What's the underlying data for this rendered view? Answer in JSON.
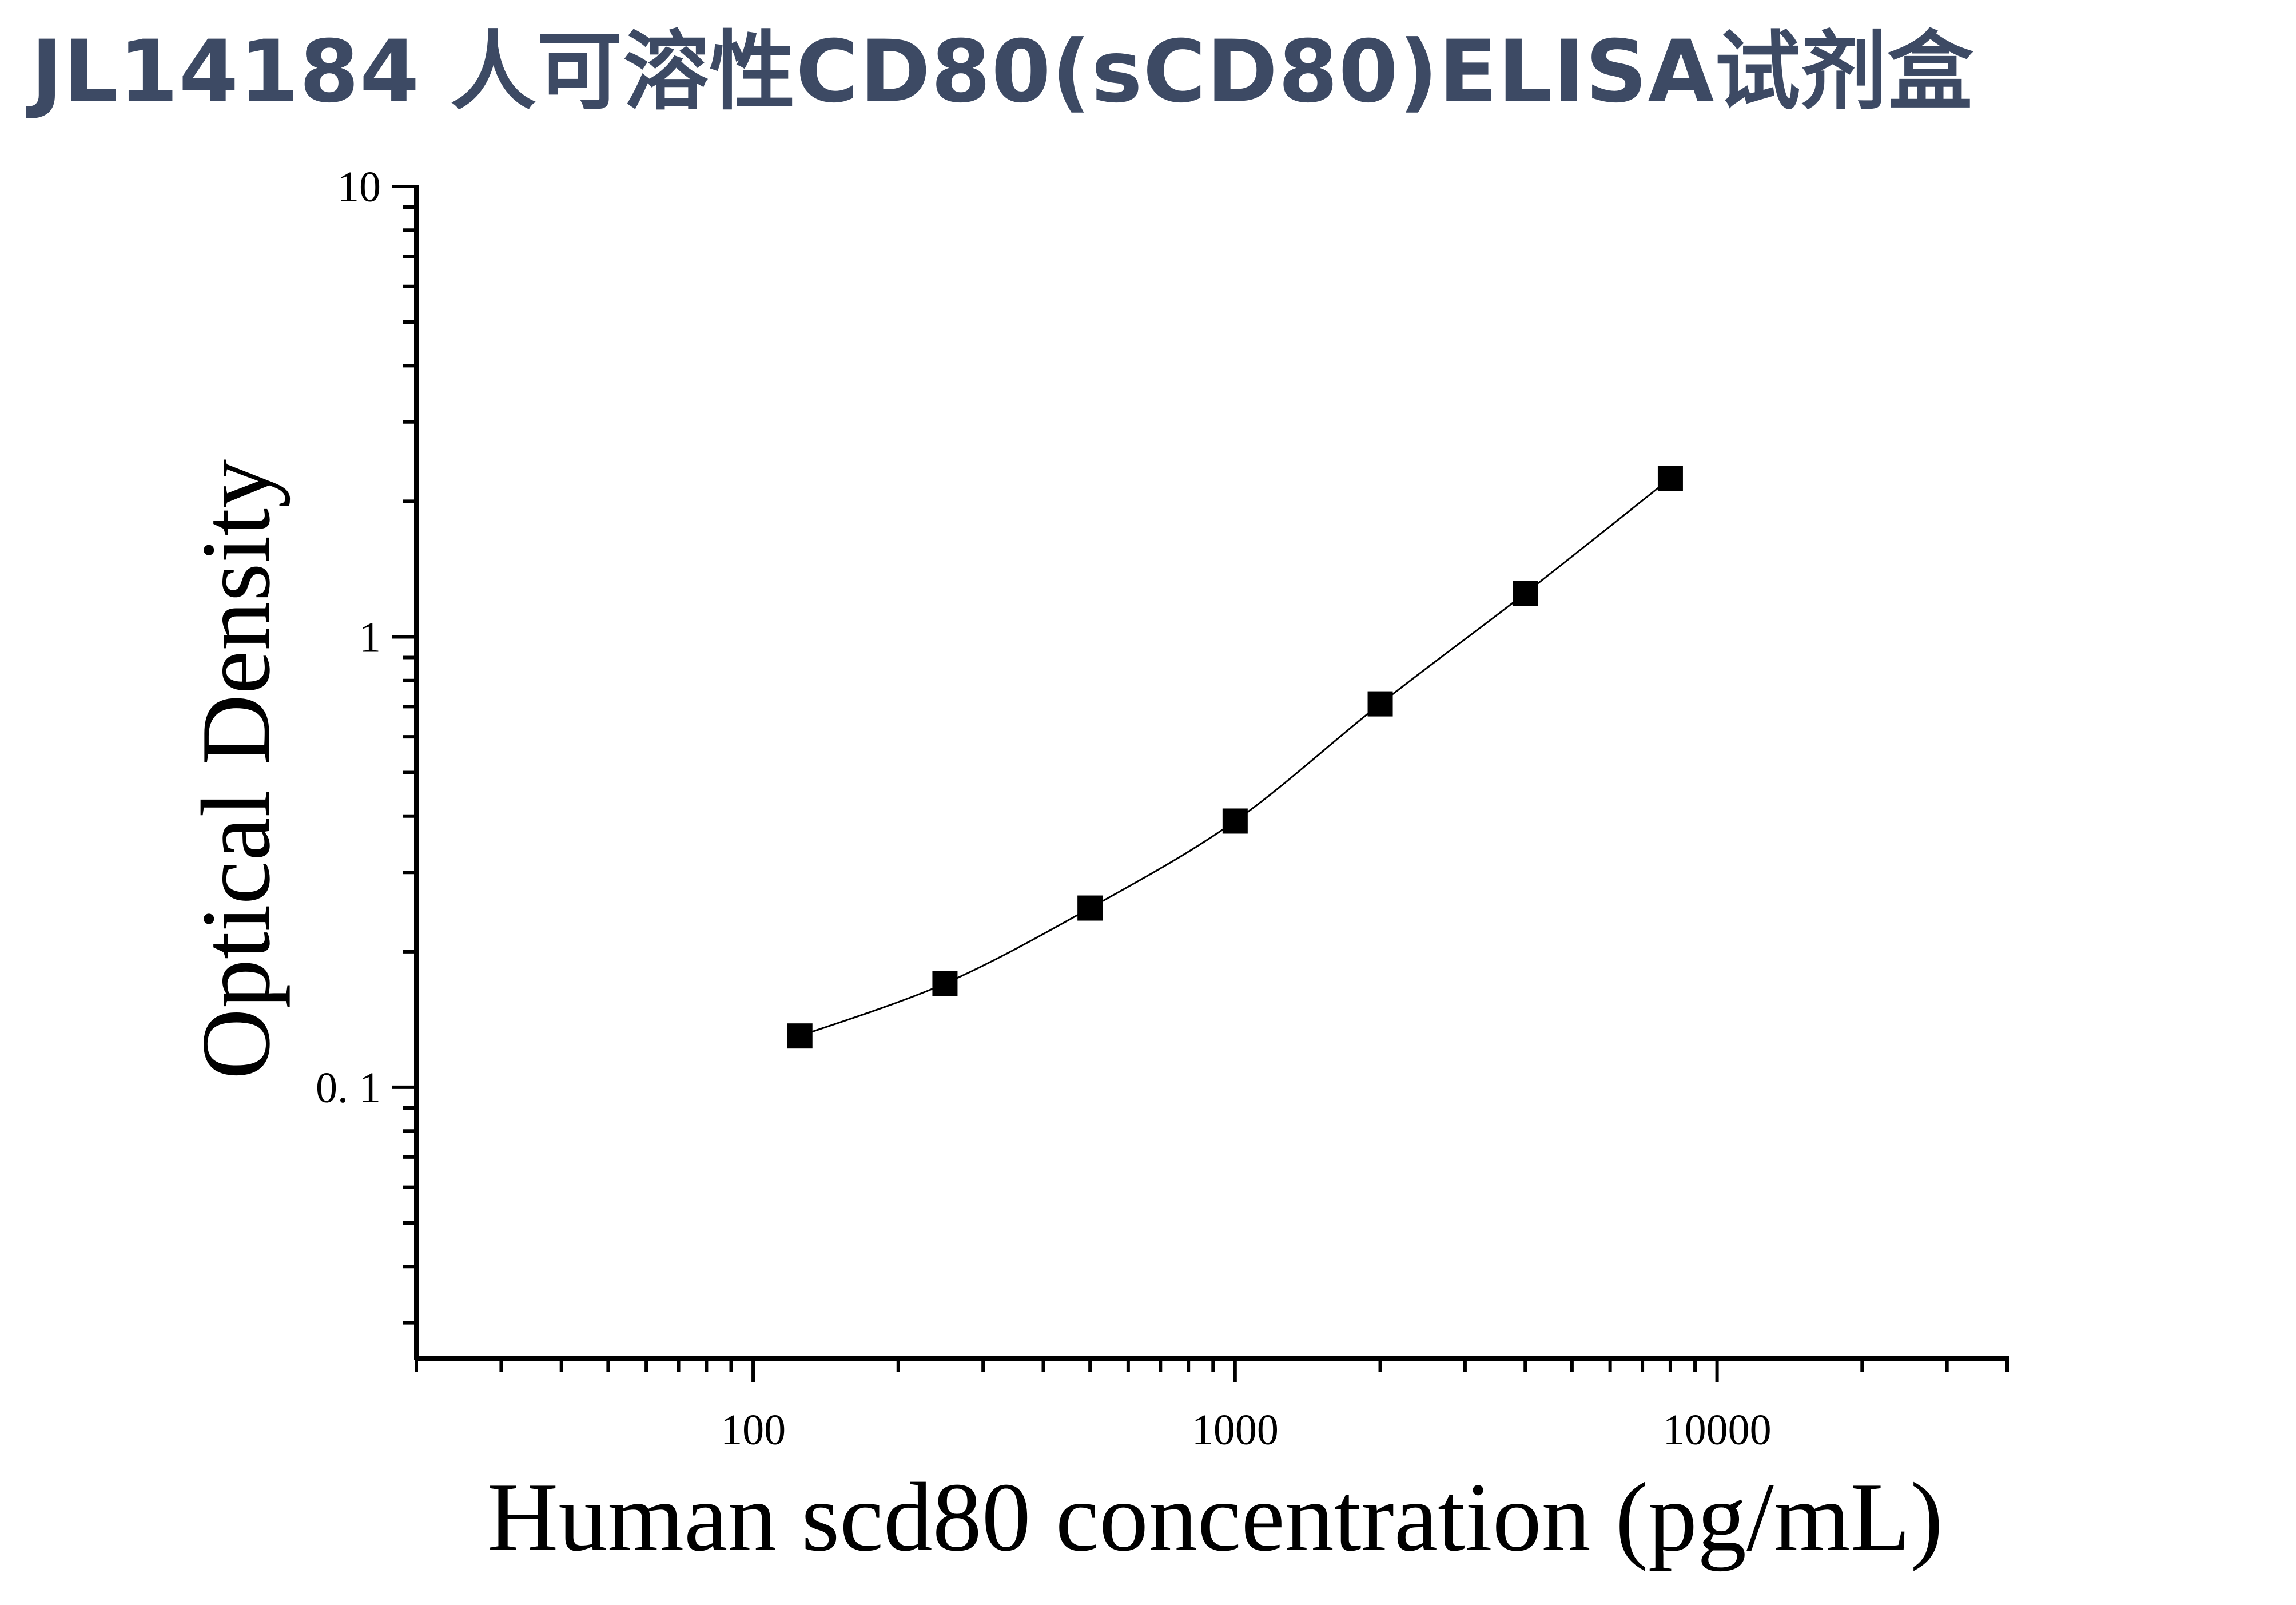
{
  "chart_data": {
    "type": "scatter",
    "title": "JL14184 人可溶性CD80(sCD80)ELISA试剂盒",
    "xlabel": "Human scd80 concentration (pg/mL)",
    "ylabel": "Optical Density",
    "xscale": "log",
    "yscale": "log",
    "xlim": [
      20,
      40000
    ],
    "ylim": [
      0.025,
      10
    ],
    "x_ticks": [
      100,
      1000,
      10000
    ],
    "x_tick_labels": [
      "100",
      "1000",
      "10000"
    ],
    "y_ticks": [
      0.1,
      1,
      10
    ],
    "y_tick_labels": [
      "0. 1",
      "1",
      "10"
    ],
    "grid": false,
    "series": [
      {
        "marker": "square",
        "fit_line": true,
        "color": "#000000",
        "x": [
          125,
          250,
          500,
          1000,
          2000,
          4000,
          8000
        ],
        "y": [
          0.13,
          0.17,
          0.25,
          0.39,
          0.71,
          1.25,
          2.25
        ]
      }
    ]
  }
}
